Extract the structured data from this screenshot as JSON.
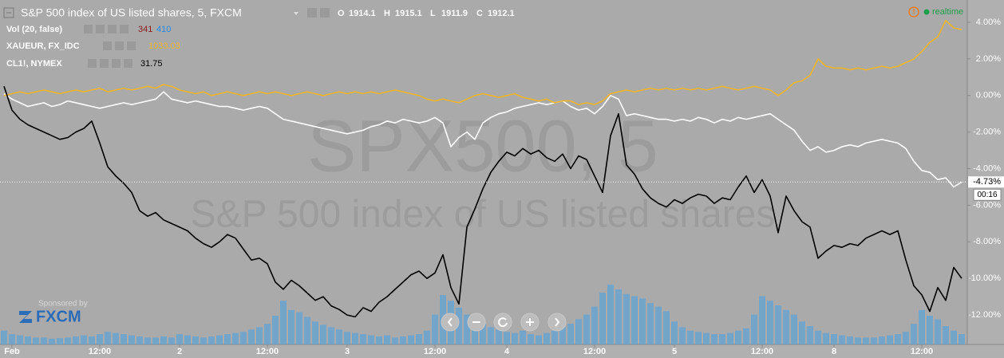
{
  "chart_data": {
    "type": "line",
    "title": "S&P 500 index of US listed shares, 5, FXCM",
    "ohlc": [
      {
        "label": "O",
        "value": 1914.1
      },
      {
        "label": "H",
        "value": 1915.1
      },
      {
        "label": "L",
        "value": 1911.9
      },
      {
        "label": "C",
        "value": 1912.1
      }
    ],
    "status": "realtime",
    "countdown": "00:16",
    "watermark": [
      "SPX500, 5",
      "S&P 500 index of US listed shares"
    ],
    "sponsor": {
      "text": "Sponsored by",
      "brand": "FXCM"
    },
    "last_price_tag": {
      "value": -4.73,
      "label": "-4.73%"
    },
    "categories": [
      null,
      "Feb",
      null,
      null,
      null,
      null,
      null,
      null,
      null,
      null,
      null,
      null,
      "12:00",
      null,
      null,
      null,
      null,
      null,
      null,
      null,
      null,
      null,
      "2",
      null,
      null,
      null,
      null,
      null,
      null,
      null,
      null,
      null,
      null,
      "12:00",
      null,
      null,
      null,
      null,
      null,
      null,
      null,
      null,
      null,
      "3",
      null,
      null,
      null,
      null,
      null,
      null,
      null,
      null,
      null,
      null,
      "12:00",
      null,
      null,
      null,
      null,
      null,
      null,
      null,
      null,
      "4",
      null,
      null,
      null,
      null,
      null,
      null,
      null,
      null,
      null,
      null,
      "12:00",
      null,
      null,
      null,
      null,
      null,
      null,
      null,
      null,
      null,
      "5",
      null,
      null,
      null,
      null,
      null,
      null,
      null,
      null,
      null,
      null,
      "12:00",
      null,
      null,
      null,
      null,
      null,
      null,
      null,
      null,
      "8",
      null,
      null,
      null,
      null,
      null,
      null,
      null,
      null,
      null,
      null,
      "12:00",
      null,
      null,
      null,
      null,
      null
    ],
    "ylim": [
      -13.61,
      5.22
    ],
    "yticks": [
      {
        "value": 4,
        "label": "4.00%"
      },
      {
        "value": 2,
        "label": "2.00%"
      },
      {
        "value": 0,
        "label": "0.00%"
      },
      {
        "value": -2,
        "label": "-2.00%"
      },
      {
        "value": -4,
        "label": "-4.00%"
      },
      {
        "value": -6,
        "label": "-6.00%"
      },
      {
        "value": -8,
        "label": "-8.00%"
      },
      {
        "value": -10,
        "label": "-10.00%"
      },
      {
        "value": -12,
        "label": "-12.00%"
      }
    ],
    "y2lim": [
      0,
      3000
    ],
    "grid": false,
    "series": [
      {
        "name": "S&P 500 index of US listed shares, 5, FXCM",
        "color": "#ffffff",
        "values": [
          0.1,
          -0.2,
          -0.4,
          -0.6,
          -0.5,
          -0.4,
          -0.6,
          -0.5,
          -0.3,
          -0.4,
          -0.5,
          -0.6,
          -0.7,
          -0.6,
          -0.5,
          -0.4,
          -0.5,
          -0.4,
          -0.3,
          -0.2,
          0.2,
          -0.2,
          -0.3,
          -0.4,
          -0.3,
          -0.4,
          -0.5,
          -0.6,
          -0.6,
          -0.7,
          -0.8,
          -0.7,
          -0.6,
          -0.7,
          -1.0,
          -1.3,
          -1.4,
          -1.5,
          -1.6,
          -1.7,
          -1.8,
          -1.9,
          -2.0,
          -2.1,
          -2.0,
          -1.9,
          -1.7,
          -1.6,
          -1.4,
          -1.5,
          -1.3,
          -1.4,
          -1.5,
          -1.4,
          -1.2,
          -1.5,
          -2.8,
          -2.3,
          -2.0,
          -2.4,
          -1.5,
          -1.2,
          -1.0,
          -0.9,
          -0.7,
          -0.6,
          -0.5,
          -0.4,
          -0.5,
          -0.4,
          -0.3,
          -0.6,
          -0.8,
          -0.7,
          -1.0,
          -0.6,
          0.0,
          -0.2,
          -1.1,
          -1.0,
          -1.1,
          -1.2,
          -1.3,
          -1.3,
          -1.4,
          -1.3,
          -1.4,
          -1.2,
          -1.3,
          -1.5,
          -1.3,
          -1.4,
          -1.2,
          -1.3,
          -1.2,
          -1.1,
          -1.0,
          -1.3,
          -1.6,
          -1.9,
          -2.5,
          -3.0,
          -2.8,
          -3.1,
          -3.0,
          -2.8,
          -2.7,
          -2.8,
          -2.6,
          -2.5,
          -2.4,
          -2.5,
          -2.6,
          -2.9,
          -3.6,
          -4.1,
          -4.2,
          -4.6,
          -4.5,
          -5.0,
          -4.73
        ]
      },
      {
        "name": "XAUEUR, FX_IDC",
        "color": "#f0b429",
        "last": 1033.03,
        "values": [
          0.0,
          0.1,
          0.2,
          0.1,
          0.2,
          0.3,
          0.2,
          0.1,
          0.2,
          0.3,
          0.2,
          0.3,
          0.4,
          0.2,
          0.3,
          0.4,
          0.3,
          0.4,
          0.5,
          0.4,
          0.6,
          0.5,
          0.3,
          0.2,
          0.1,
          0.2,
          0.0,
          0.1,
          0.2,
          0.1,
          0.0,
          0.1,
          0.2,
          0.1,
          0.2,
          0.1,
          0.0,
          0.1,
          0.2,
          0.1,
          0.0,
          0.1,
          0.2,
          0.1,
          0.2,
          0.1,
          0.2,
          0.1,
          0.2,
          0.3,
          0.2,
          0.1,
          0.0,
          -0.2,
          -0.3,
          -0.2,
          -0.3,
          -0.4,
          -0.2,
          0.0,
          0.1,
          0.0,
          -0.1,
          0.0,
          0.1,
          -0.1,
          -0.2,
          -0.3,
          -0.2,
          -0.4,
          -0.3,
          -0.3,
          -0.5,
          -0.4,
          -0.5,
          -0.3,
          0.1,
          0.2,
          0.3,
          0.2,
          0.3,
          0.4,
          0.3,
          0.4,
          0.3,
          0.4,
          0.3,
          0.4,
          0.3,
          0.4,
          0.5,
          0.4,
          0.3,
          0.4,
          0.5,
          0.4,
          0.3,
          0.0,
          0.3,
          0.7,
          0.8,
          1.1,
          2.0,
          1.6,
          1.5,
          1.5,
          1.4,
          1.5,
          1.4,
          1.5,
          1.6,
          1.5,
          1.6,
          1.8,
          2.0,
          2.4,
          2.9,
          3.2,
          4.1,
          3.7,
          3.6
        ]
      },
      {
        "name": "CL1!, NYMEX",
        "color": "#000000",
        "last": 31.75,
        "values": [
          0.5,
          -0.8,
          -1.3,
          -1.6,
          -1.8,
          -2.0,
          -2.2,
          -2.4,
          -2.3,
          -2.0,
          -1.8,
          -1.4,
          -2.6,
          -3.9,
          -4.4,
          -4.8,
          -5.3,
          -6.3,
          -6.6,
          -6.4,
          -6.8,
          -7.0,
          -7.2,
          -7.4,
          -7.8,
          -8.1,
          -8.3,
          -8.0,
          -7.6,
          -7.8,
          -8.4,
          -9.0,
          -8.9,
          -9.2,
          -10.2,
          -10.6,
          -10.1,
          -10.4,
          -10.8,
          -11.2,
          -11.0,
          -11.5,
          -11.7,
          -12.0,
          -12.1,
          -11.6,
          -11.8,
          -11.3,
          -11.0,
          -10.6,
          -10.2,
          -9.8,
          -9.6,
          -10.0,
          -9.7,
          -8.7,
          -10.5,
          -11.4,
          -7.2,
          -6.2,
          -5.1,
          -4.2,
          -3.6,
          -3.1,
          -3.3,
          -2.9,
          -3.2,
          -3.0,
          -3.4,
          -3.6,
          -3.2,
          -4.0,
          -3.3,
          -3.5,
          -4.4,
          -5.3,
          -2.2,
          -1.0,
          -3.8,
          -4.3,
          -5.1,
          -5.6,
          -5.9,
          -6.1,
          -5.7,
          -5.9,
          -5.6,
          -5.4,
          -5.5,
          -5.9,
          -5.6,
          -5.7,
          -5.0,
          -4.4,
          -5.3,
          -4.6,
          -5.5,
          -7.5,
          -5.5,
          -6.3,
          -6.9,
          -7.2,
          -8.9,
          -8.5,
          -8.2,
          -8.3,
          -8.1,
          -8.2,
          -7.8,
          -7.6,
          -7.4,
          -7.6,
          -7.4,
          -9.0,
          -10.4,
          -10.9,
          -11.8,
          -10.5,
          -11.2,
          -9.4,
          -10.0
        ]
      },
      {
        "name": "Vol (20, false)",
        "color": "#5ba3d9",
        "axis": "y2",
        "last": [
          341,
          410
        ],
        "last_colors": [
          "#8b1a1a",
          "#1e88e5"
        ],
        "values": [
          120,
          90,
          80,
          70,
          60,
          60,
          50,
          55,
          60,
          70,
          80,
          70,
          90,
          110,
          100,
          90,
          80,
          70,
          60,
          60,
          70,
          60,
          90,
          80,
          70,
          60,
          70,
          80,
          90,
          100,
          110,
          130,
          150,
          180,
          250,
          380,
          300,
          280,
          240,
          200,
          170,
          150,
          130,
          110,
          100,
          90,
          80,
          70,
          80,
          60,
          70,
          80,
          90,
          120,
          260,
          430,
          380,
          320,
          260,
          220,
          180,
          150,
          130,
          110,
          100,
          120,
          90,
          80,
          100,
          120,
          150,
          180,
          220,
          260,
          330,
          450,
          520,
          480,
          440,
          420,
          400,
          360,
          330,
          290,
          200,
          150,
          120,
          110,
          100,
          90,
          90,
          100,
          120,
          140,
          260,
          420,
          380,
          340,
          300,
          260,
          200,
          160,
          120,
          100,
          90,
          80,
          70,
          60,
          60,
          60,
          70,
          80,
          90,
          110,
          180,
          300,
          250,
          220,
          160,
          120,
          90
        ]
      }
    ]
  }
}
